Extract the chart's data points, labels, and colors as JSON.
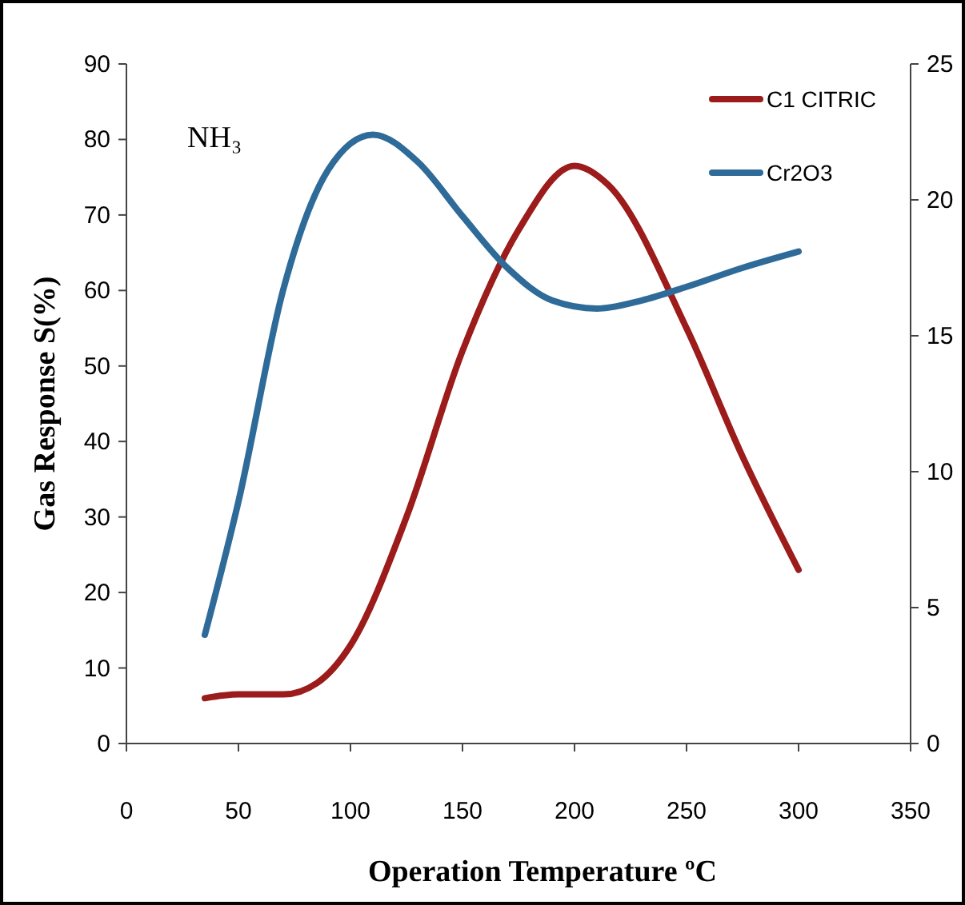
{
  "chart_data": {
    "type": "line",
    "xlabel": "Operation Temperature ºC",
    "ylabel": "Gas Response S(%)",
    "annotations": [
      "NH₃"
    ],
    "xlim": [
      0,
      350
    ],
    "xticks": [
      0,
      50,
      100,
      150,
      200,
      250,
      300,
      350
    ],
    "ylim": [
      0,
      90
    ],
    "yticks": [
      0,
      10,
      20,
      30,
      40,
      50,
      60,
      70,
      80,
      90
    ],
    "y2lim": [
      0,
      25
    ],
    "y2ticks": [
      0,
      5,
      10,
      15,
      20,
      25
    ],
    "legend": "top right",
    "grid": false,
    "marker": "none",
    "line_style": "solid",
    "series": [
      {
        "name": "C1 CITRIC",
        "color": "#9b1c1a",
        "x": [
          35,
          50,
          70,
          85,
          100,
          125,
          150,
          175,
          200,
          215,
          250,
          275,
          300
        ],
        "values": [
          6,
          6.5,
          6.5,
          8,
          13,
          30,
          52,
          68,
          76.5,
          74,
          55,
          38,
          23
        ]
      },
      {
        "name": "Cr2O3",
        "color": "#2f6b99",
        "axis": "y2",
        "x": [
          35,
          50,
          70,
          90,
          110,
          130,
          150,
          170,
          190,
          210,
          230,
          250,
          275,
          300
        ],
        "values": [
          4.0,
          8.9,
          16.7,
          21.1,
          22.4,
          21.4,
          19.4,
          17.5,
          16.3,
          16.0,
          16.3,
          16.8,
          17.5,
          18.1
        ]
      }
    ]
  }
}
